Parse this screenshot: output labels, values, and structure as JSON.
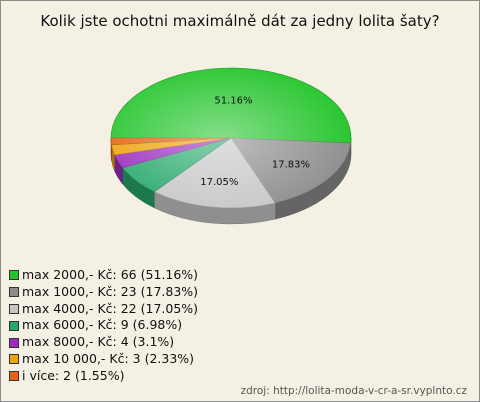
{
  "chart_data": {
    "type": "pie",
    "title": "Kolik jste ochotni maximálně dát za jedny lolita šaty?",
    "source": "zdroj:  http://lolita-moda-v-cr-a-sr.vyplnto.cz",
    "slices": [
      {
        "label": "max 2000,- Kč",
        "count": 66,
        "percent": 51.16,
        "legend": "max 2000,- Kč: 66 (51.16%)",
        "pct_label": "51.16%",
        "color": "#22c42a"
      },
      {
        "label": "max 1000,- Kč",
        "count": 23,
        "percent": 17.83,
        "legend": "max 1000,- Kč: 23 (17.83%)",
        "pct_label": "17.83%",
        "color": "#8c8c8c"
      },
      {
        "label": "max 4000,- Kč",
        "count": 22,
        "percent": 17.05,
        "legend": "max 4000,- Kč: 22 (17.05%)",
        "pct_label": "17.05%",
        "color": "#c6c6c6"
      },
      {
        "label": "max 6000,- Kč",
        "count": 9,
        "percent": 6.98,
        "legend": "max 6000,- Kč: 9 (6.98%)",
        "pct_label": "",
        "color": "#27a86b"
      },
      {
        "label": "max 8000,- Kč",
        "count": 4,
        "percent": 3.1,
        "legend": "max 8000,- Kč: 4 (3.1%)",
        "pct_label": "",
        "color": "#9b2bbf"
      },
      {
        "label": "max 10 000,- Kč",
        "count": 3,
        "percent": 2.33,
        "legend": "max 10 000,- Kč: 3 (2.33%)",
        "pct_label": "",
        "color": "#f0a20c"
      },
      {
        "label": "i více",
        "count": 2,
        "percent": 1.55,
        "legend": "i více: 2 (1.55%)",
        "pct_label": "",
        "color": "#e8620f"
      }
    ]
  }
}
